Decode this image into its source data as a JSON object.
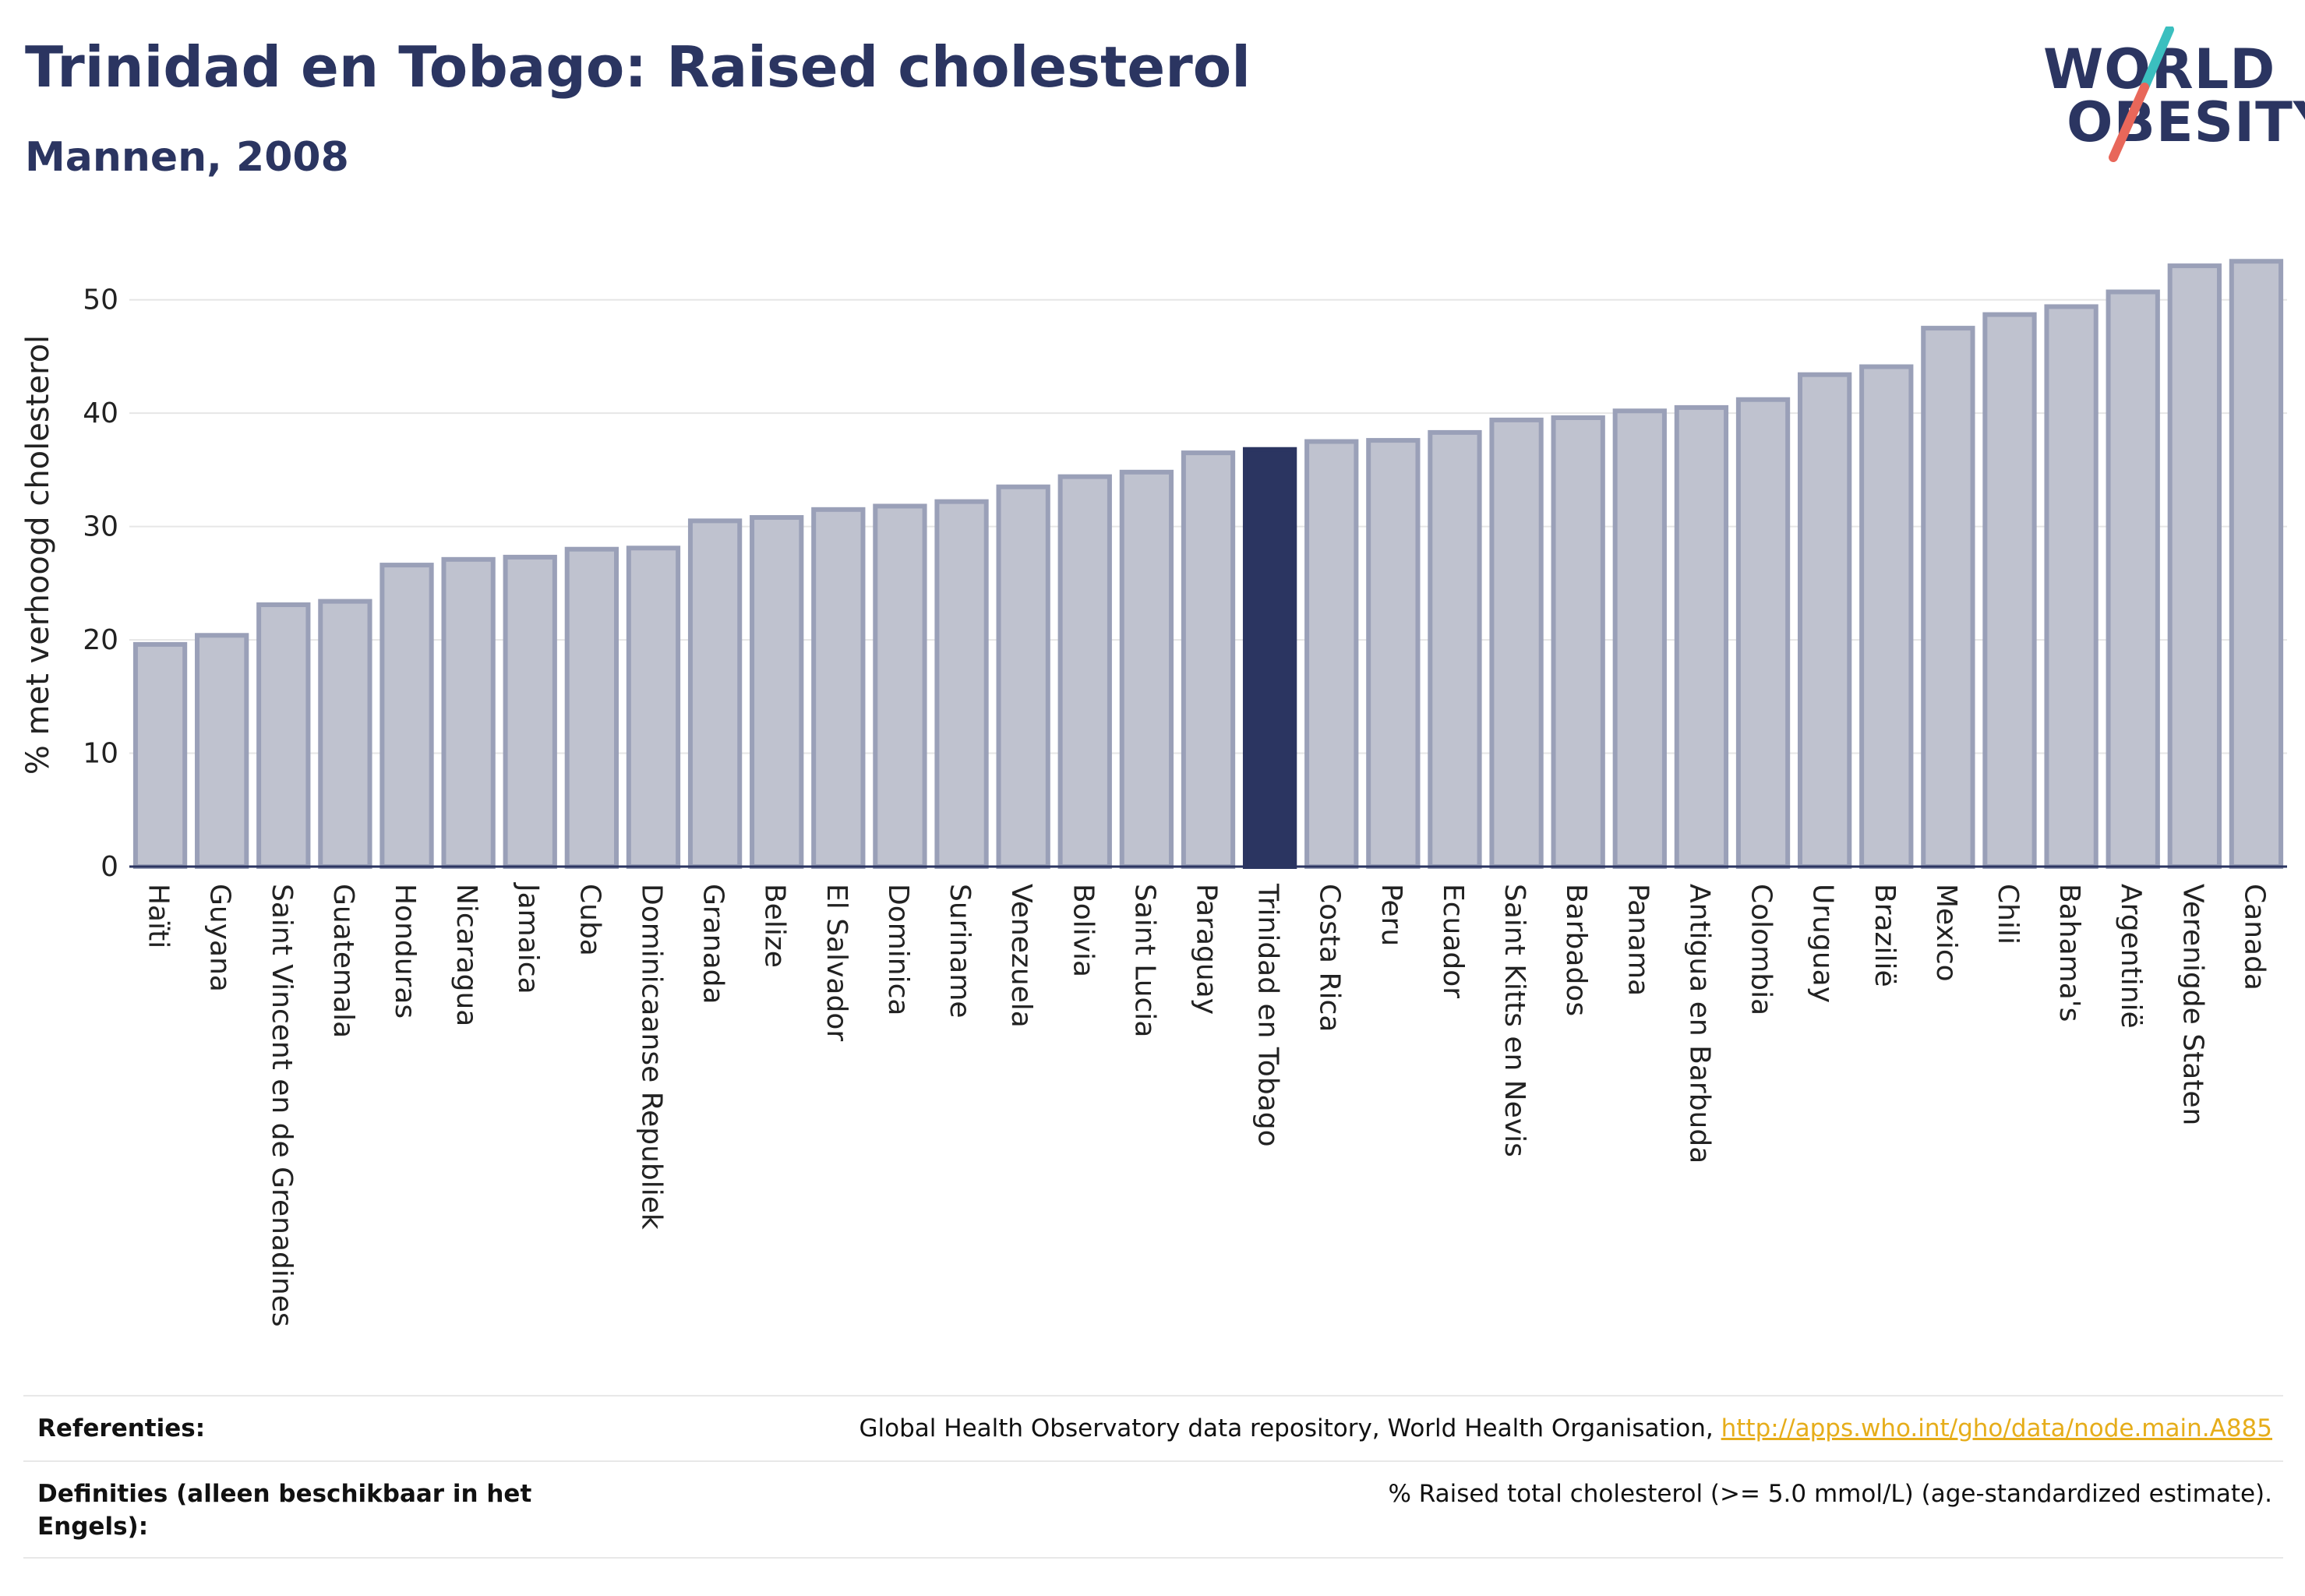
{
  "header": {
    "title": "Trinidad en Tobago: Raised cholesterol",
    "subtitle": "Mannen, 2008"
  },
  "logo": {
    "line1": "WORLD",
    "line2": "OBESITY",
    "colors": {
      "text": "#2b3561",
      "slash_top": "#3bbfbf",
      "slash_bottom": "#e8675a"
    }
  },
  "chart_data": {
    "type": "bar",
    "title": "",
    "xlabel": "",
    "ylabel": "% met verhoogd cholesterol",
    "ylim": [
      0,
      55
    ],
    "yticks": [
      0,
      10,
      20,
      30,
      40,
      50
    ],
    "grid": true,
    "highlight": "Trinidad en Tobago",
    "colors": {
      "bar": "#bfc2cf",
      "bar_edge": "#9aa0b8",
      "highlight": "#2b3561"
    },
    "categories": [
      "Haïti",
      "Guyana",
      "Saint Vincent en de Grenadines",
      "Guatemala",
      "Honduras",
      "Nicaragua",
      "Jamaica",
      "Cuba",
      "Dominicaanse Republiek",
      "Granada",
      "Belize",
      "El Salvador",
      "Dominica",
      "Suriname",
      "Venezuela",
      "Bolivia",
      "Saint Lucia",
      "Paraguay",
      "Trinidad en Tobago",
      "Costa Rica",
      "Peru",
      "Ecuador",
      "Saint Kitts en Nevis",
      "Barbados",
      "Panama",
      "Antigua en Barbuda",
      "Colombia",
      "Uruguay",
      "Brazilië",
      "Mexico",
      "Chili",
      "Bahama's",
      "Argentinië",
      "Verenigde Staten",
      "Canada"
    ],
    "values": [
      19.6,
      20.4,
      23.1,
      23.4,
      26.6,
      27.1,
      27.3,
      28.0,
      28.1,
      30.5,
      30.8,
      31.5,
      31.8,
      32.2,
      33.5,
      34.4,
      34.8,
      36.5,
      36.8,
      37.5,
      37.6,
      38.3,
      39.4,
      39.6,
      40.2,
      40.5,
      41.2,
      43.4,
      44.1,
      47.5,
      48.7,
      49.4,
      50.7,
      53.0,
      53.4
    ]
  },
  "footer": {
    "references_label": "Referenties:",
    "references_text": "Global Health Observatory data repository, World Health Organisation, ",
    "references_link": "http://apps.who.int/gho/data/node.main.A885",
    "definitions_label": "Definities (alleen beschikbaar in het Engels):",
    "definitions_text": "% Raised total cholesterol (>= 5.0 mmol/L) (age-standardized estimate)."
  }
}
